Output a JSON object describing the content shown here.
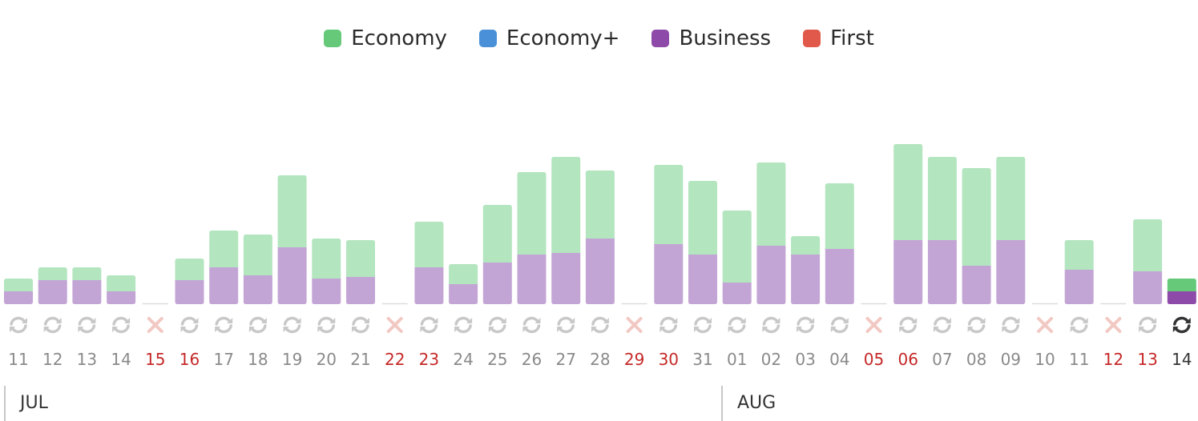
{
  "legend": {
    "economy": "Economy",
    "economy_plus": "Economy+",
    "business": "Business",
    "first": "First"
  },
  "colors": {
    "economy": "#66c97a",
    "economy_plus": "#4a90d9",
    "business": "#8e4aa8",
    "first": "#e0594a",
    "economy_light": "#b3e5bf",
    "business_light": "#c3a5d5",
    "unavailable": "#f2c8c3",
    "refresh": "#c8c8c8",
    "refresh_active": "#333333",
    "red_date": "#c62828",
    "gray_date": "#8a8a8a"
  },
  "months": [
    "JUL",
    "AUG"
  ],
  "chart_data": {
    "type": "bar",
    "stacked": true,
    "categories": [
      "11",
      "12",
      "13",
      "14",
      "15",
      "16",
      "17",
      "18",
      "19",
      "20",
      "21",
      "22",
      "23",
      "24",
      "25",
      "26",
      "27",
      "28",
      "29",
      "30",
      "31",
      "01",
      "02",
      "03",
      "04",
      "05",
      "06",
      "07",
      "08",
      "09",
      "10",
      "11",
      "12",
      "13",
      "14"
    ],
    "series": [
      {
        "name": "Business",
        "values": [
          16,
          30,
          30,
          16,
          0,
          30,
          46,
          36,
          71,
          32,
          34,
          0,
          46,
          25,
          52,
          62,
          64,
          82,
          0,
          75,
          62,
          27,
          73,
          62,
          69,
          0,
          80,
          80,
          48,
          80,
          0,
          43,
          0,
          41,
          16
        ]
      },
      {
        "name": "Economy",
        "values": [
          16,
          16,
          16,
          20,
          0,
          27,
          46,
          51,
          90,
          50,
          46,
          0,
          57,
          25,
          72,
          103,
          120,
          85,
          0,
          99,
          92,
          90,
          104,
          23,
          82,
          0,
          120,
          104,
          122,
          104,
          0,
          37,
          0,
          65,
          16
        ]
      },
      {
        "name": "Economy+",
        "values": [
          0,
          0,
          0,
          0,
          0,
          0,
          0,
          0,
          0,
          0,
          0,
          0,
          0,
          0,
          0,
          0,
          0,
          0,
          0,
          0,
          0,
          0,
          0,
          0,
          0,
          0,
          0,
          0,
          0,
          0,
          0,
          0,
          0,
          0,
          0
        ]
      },
      {
        "name": "First",
        "values": [
          0,
          0,
          0,
          0,
          0,
          0,
          0,
          0,
          0,
          0,
          0,
          0,
          0,
          0,
          0,
          0,
          0,
          0,
          0,
          0,
          0,
          0,
          0,
          0,
          0,
          0,
          0,
          0,
          0,
          0,
          0,
          0,
          0,
          0,
          0
        ]
      }
    ],
    "status": [
      "refresh",
      "refresh",
      "refresh",
      "refresh",
      "unavailable",
      "refresh",
      "refresh",
      "refresh",
      "refresh",
      "refresh",
      "refresh",
      "unavailable",
      "refresh",
      "refresh",
      "refresh",
      "refresh",
      "refresh",
      "refresh",
      "unavailable",
      "refresh",
      "refresh",
      "refresh",
      "refresh",
      "refresh",
      "refresh",
      "unavailable",
      "refresh",
      "refresh",
      "refresh",
      "refresh",
      "unavailable",
      "refresh",
      "unavailable",
      "refresh",
      "active"
    ],
    "highlight_dates": [
      false,
      false,
      false,
      false,
      true,
      true,
      false,
      false,
      false,
      false,
      false,
      true,
      true,
      false,
      false,
      false,
      false,
      false,
      true,
      true,
      false,
      false,
      false,
      false,
      false,
      true,
      true,
      false,
      false,
      false,
      false,
      false,
      true,
      true,
      false
    ],
    "current_index": 34,
    "ylim": [
      0,
      210
    ]
  }
}
